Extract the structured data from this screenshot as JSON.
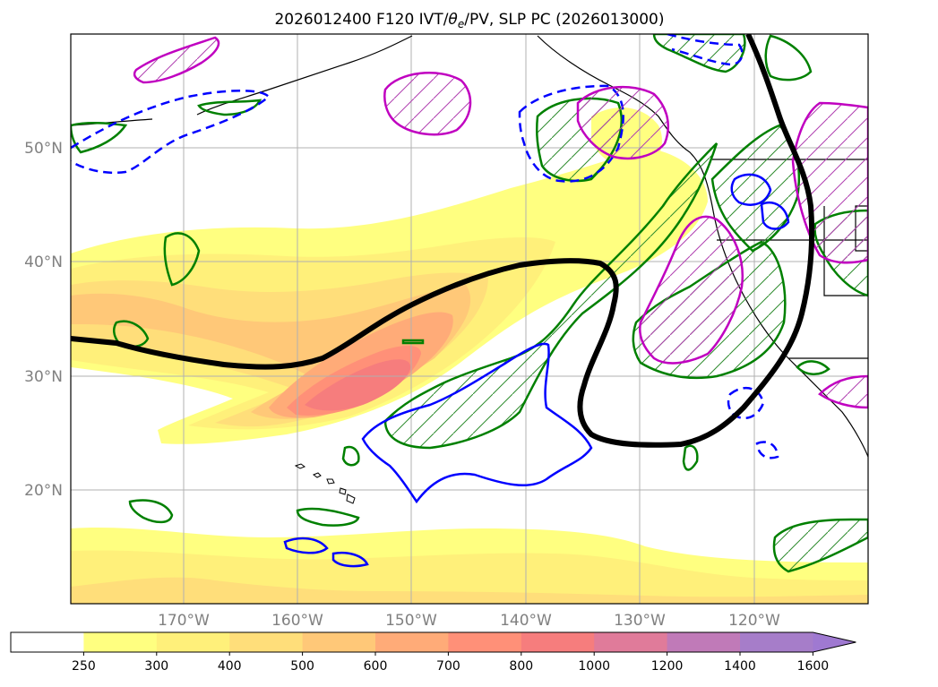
{
  "title": "2026012400 F120 IVT/θe/PV, SLP PC (2026013000)",
  "title_parts": {
    "prefix": "2026012400 F120 IVT/",
    "theta": "θ",
    "sub": "e",
    "suffix": "/PV, SLP PC (2026013000)"
  },
  "map": {
    "lat_labels": [
      "50°N",
      "40°N",
      "30°N",
      "20°N"
    ],
    "lon_labels": [
      "170°W",
      "160°W",
      "150°W",
      "140°W",
      "130°W",
      "120°W"
    ],
    "grid": true,
    "colors": {
      "coastline": "#000000",
      "slp_contour": "#000000",
      "theta_e_positive": "#008000",
      "theta_e_negative": "#0000ff",
      "pv": "#c000c0",
      "grid": "#b0b0b0"
    }
  },
  "colorbar": {
    "levels": [
      "250",
      "300",
      "400",
      "500",
      "600",
      "700",
      "800",
      "1000",
      "1200",
      "1400",
      "1600"
    ],
    "colors": [
      "#ffffff",
      "#ffff80",
      "#fff07a",
      "#ffde7a",
      "#ffc878",
      "#ffab78",
      "#ff9078",
      "#f67d7d",
      "#e07b9a",
      "#c07ab8",
      "#a67dc9",
      "#9f79d1"
    ],
    "extend": "max"
  }
}
